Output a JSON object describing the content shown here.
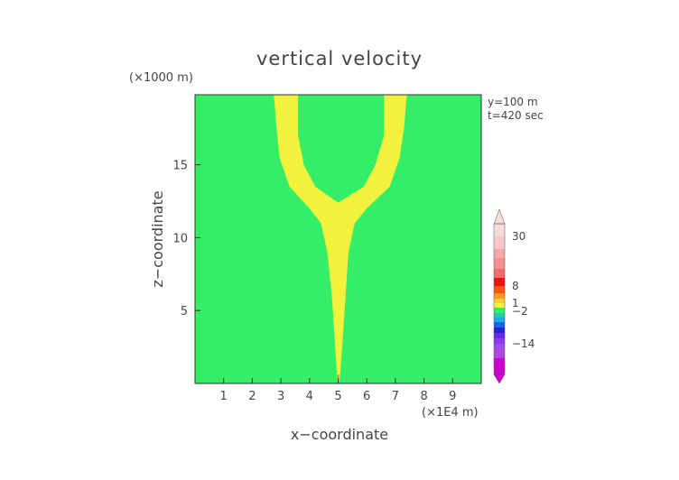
{
  "chart_data": {
    "type": "heatmap",
    "title": "vertical velocity",
    "xlabel": "x−coordinate",
    "ylabel": "z−coordinate",
    "x_unit": "(×1E4 m)",
    "y_unit": "(×1000 m)",
    "annotations": [
      "y=100 m",
      "t=420 sec"
    ],
    "xlim": [
      0,
      10
    ],
    "ylim": [
      0,
      19.8
    ],
    "x_ticks": [
      1,
      2,
      3,
      4,
      5,
      6,
      7,
      8,
      9
    ],
    "y_ticks": [
      5,
      10,
      15
    ],
    "grid": false,
    "background_level": {
      "range": [
        -2,
        1
      ],
      "color": "#33ee66"
    },
    "plume": {
      "range": [
        1,
        2
      ],
      "color": "#f2f23c",
      "core_color": "#e89a1c",
      "profile": [
        {
          "z": 0.2,
          "left": 4.97,
          "right": 5.05
        },
        {
          "z": 3.0,
          "left": 4.88,
          "right": 5.16
        },
        {
          "z": 6.0,
          "left": 4.78,
          "right": 5.26
        },
        {
          "z": 9.0,
          "left": 4.62,
          "right": 5.36
        },
        {
          "z": 11.0,
          "left": 4.4,
          "right": 5.58
        },
        {
          "z": 12.0,
          "left": 4.0,
          "right": 6.0
        }
      ],
      "arms": {
        "inner": [
          {
            "z": 12.4,
            "x_left": 5.0,
            "x_right": 5.0
          },
          {
            "z": 13.5,
            "x_left": 4.2,
            "x_right": 5.9
          },
          {
            "z": 15.0,
            "x_left": 3.8,
            "x_right": 6.3
          },
          {
            "z": 17.0,
            "x_left": 3.6,
            "x_right": 6.6
          },
          {
            "z": 19.8,
            "x_left": 3.6,
            "x_right": 6.6
          }
        ],
        "outer": [
          {
            "z": 12.0,
            "x_left": 4.0,
            "x_right": 6.0
          },
          {
            "z": 13.5,
            "x_left": 3.3,
            "x_right": 6.8
          },
          {
            "z": 15.5,
            "x_left": 2.95,
            "x_right": 7.15
          },
          {
            "z": 17.5,
            "x_left": 2.85,
            "x_right": 7.3
          },
          {
            "z": 19.8,
            "x_left": 2.75,
            "x_right": 7.4
          }
        ]
      }
    },
    "colorbar": {
      "labels": [
        "30",
        "8",
        "1",
        "−2",
        "−14"
      ],
      "label_values": [
        30,
        8,
        1,
        -2,
        -14
      ],
      "levels": [
        {
          "color": "#cc00cc"
        },
        {
          "color": "#b24ad9"
        },
        {
          "color": "#9d4ee8"
        },
        {
          "color": "#8a3af0"
        },
        {
          "color": "#6a28e8"
        },
        {
          "color": "#2222dd"
        },
        {
          "color": "#1f60ee"
        },
        {
          "color": "#22aaee"
        },
        {
          "color": "#22ccaa"
        },
        {
          "color": "#33ee66"
        },
        {
          "color": "#f2f23c"
        },
        {
          "color": "#ffcc33"
        },
        {
          "color": "#ff9922"
        },
        {
          "color": "#ff5511"
        },
        {
          "color": "#ee1111"
        },
        {
          "color": "#f26a6a"
        },
        {
          "color": "#f59090"
        },
        {
          "color": "#f6a8a8"
        },
        {
          "color": "#f8c8c8"
        },
        {
          "color": "#fadada"
        }
      ]
    }
  }
}
